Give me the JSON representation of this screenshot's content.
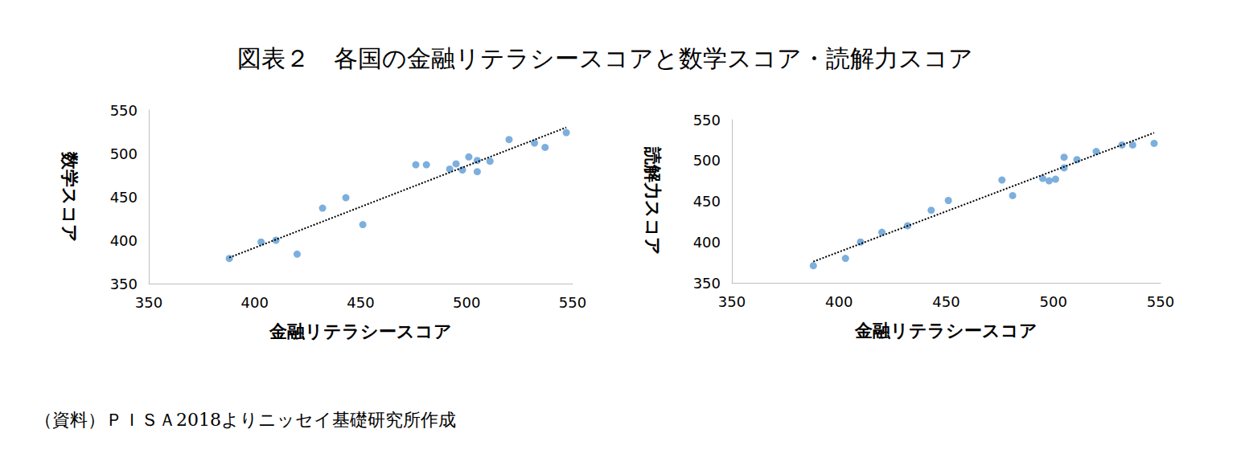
{
  "title": "図表２　各国の金融リテラシースコアと数学スコア・読解力スコア",
  "source": "（資料）ＰＩＳＡ2018よりニッセイ基礎研究所作成",
  "chart_data": [
    {
      "type": "scatter",
      "x_label": "金融リテラシースコア",
      "y_label": "数学スコア",
      "x": [
        388,
        403,
        410,
        420,
        432,
        443,
        451,
        476,
        481,
        492,
        495,
        498,
        501,
        505,
        505,
        511,
        520,
        532,
        537,
        547
      ],
      "values": [
        379,
        398,
        400,
        384,
        437,
        449,
        418,
        487,
        487,
        482,
        488,
        481,
        496,
        492,
        479,
        491,
        516,
        512,
        507,
        524
      ],
      "color": "#5b9bd5",
      "marker": "circle",
      "xlim": [
        350,
        550
      ],
      "xticks": [
        350,
        400,
        450,
        500,
        550
      ],
      "ylim": [
        350,
        550
      ],
      "yticks": [
        350,
        400,
        450,
        500,
        550
      ],
      "grid": false,
      "trendline": {
        "x": [
          388,
          547
        ],
        "y": [
          380,
          530
        ],
        "color": "#000000",
        "line_style": "dotted"
      }
    },
    {
      "type": "scatter",
      "x_label": "金融リテラシースコア",
      "y_label": "読解力スコア",
      "x": [
        388,
        403,
        410,
        420,
        432,
        443,
        451,
        476,
        481,
        495,
        498,
        501,
        505,
        505,
        511,
        520,
        532,
        537,
        547
      ],
      "values": [
        371,
        380,
        400,
        412,
        420,
        439,
        451,
        476,
        457,
        478,
        475,
        477,
        504,
        491,
        501,
        511,
        519,
        519,
        521
      ],
      "color": "#5b9bd5",
      "marker": "circle",
      "xlim": [
        350,
        550
      ],
      "xticks": [
        350,
        400,
        450,
        500,
        550
      ],
      "ylim": [
        350,
        550
      ],
      "yticks": [
        350,
        400,
        450,
        500,
        550
      ],
      "grid": false,
      "trendline": {
        "x": [
          388,
          547
        ],
        "y": [
          376,
          534
        ],
        "color": "#000000",
        "line_style": "dotted"
      }
    }
  ]
}
